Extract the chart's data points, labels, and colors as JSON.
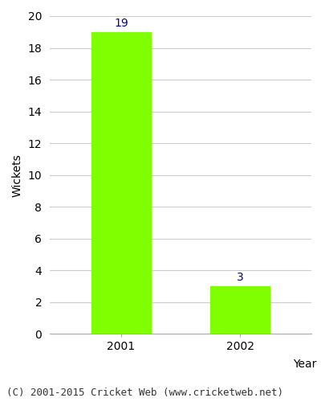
{
  "categories": [
    "2001",
    "2002"
  ],
  "values": [
    19,
    3
  ],
  "bar_color": "#7FFF00",
  "bar_edgecolor": "#7FFF00",
  "label_color": "#00008B",
  "xlabel": "Year",
  "ylabel": "Wickets",
  "ylim": [
    0,
    20
  ],
  "yticks": [
    0,
    2,
    4,
    6,
    8,
    10,
    12,
    14,
    16,
    18,
    20
  ],
  "xlabel_fontsize": 10,
  "ylabel_fontsize": 10,
  "tick_fontsize": 10,
  "label_fontsize": 10,
  "footer_text": "(C) 2001-2015 Cricket Web (www.cricketweb.net)",
  "footer_fontsize": 9,
  "background_color": "#ffffff",
  "axes_background": "#ffffff",
  "grid_color": "#cccccc",
  "bar_width": 0.5
}
